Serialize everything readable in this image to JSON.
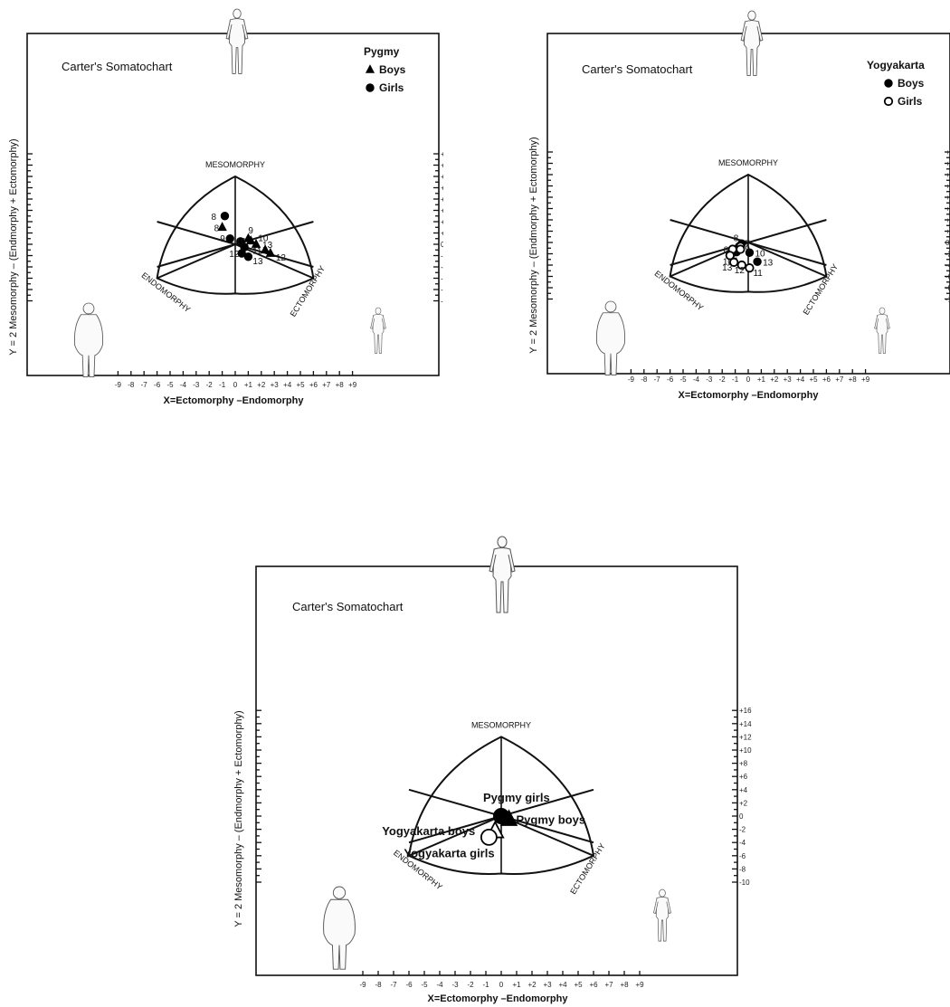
{
  "chart_data": [
    {
      "type": "scatter",
      "title": "Carter's Somatochart",
      "xlabel": "X=Ectomorphy –Endomorphy",
      "ylabel": "Y = 2 Mesomorphy – (Endmorphy + Ectomorphy)",
      "xlim": [
        -9,
        9
      ],
      "ylim": [
        -10,
        16
      ],
      "regions": [
        "MESOMORPHY",
        "ENDOMORPHY",
        "ECTOMORPHY"
      ],
      "legend": {
        "title": "Pygmy",
        "entries": [
          {
            "label": "Boys",
            "marker": "triangle"
          },
          {
            "label": "Girls",
            "marker": "filled-circle"
          }
        ]
      },
      "series": [
        {
          "name": "Boys",
          "marker": "triangle",
          "points": [
            {
              "label": "8",
              "x": -1.0,
              "y": 3.0
            },
            {
              "label": "9",
              "x": 1.0,
              "y": 1.0
            },
            {
              "label": "10",
              "x": 1.2,
              "y": 0.6
            },
            {
              "label": "13",
              "x": 1.6,
              "y": 0.0
            },
            {
              "label": "11",
              "x": 2.3,
              "y": -1.0
            },
            {
              "label": "12",
              "x": 2.7,
              "y": -1.6
            }
          ]
        },
        {
          "name": "Girls",
          "marker": "filled-circle",
          "points": [
            {
              "label": "8",
              "x": -0.8,
              "y": 5.0
            },
            {
              "label": "9",
              "x": -0.4,
              "y": 1.0
            },
            {
              "label": "10",
              "x": 0.4,
              "y": 0.5
            },
            {
              "label": "",
              "x": 0.7,
              "y": -0.5
            },
            {
              "label": "12",
              "x": 0.5,
              "y": -1.6
            },
            {
              "label": "13",
              "x": 1.0,
              "y": -2.2
            }
          ]
        }
      ]
    },
    {
      "type": "scatter",
      "title": "Carter's Somatochart",
      "xlabel": "X=Ectomorphy –Endomorphy",
      "ylabel": "Y = 2 Mesomorphy – (Endmorphy + Ectomorphy)",
      "xlim": [
        -9,
        9
      ],
      "ylim": [
        -10,
        16
      ],
      "regions": [
        "MESOMORPHY",
        "ENDOMORPHY",
        "ECTOMORPHY"
      ],
      "legend": {
        "title": "Yogyakarta",
        "entries": [
          {
            "label": "Boys",
            "marker": "filled-circle"
          },
          {
            "label": "Girls",
            "marker": "open-circle"
          }
        ]
      },
      "series": [
        {
          "name": "Boys",
          "marker": "filled-circle",
          "points": [
            {
              "label": "8",
              "x": -0.5,
              "y": -0.2
            },
            {
              "label": "",
              "x": -0.7,
              "y": -0.7
            },
            {
              "label": "",
              "x": -0.9,
              "y": -1.2
            },
            {
              "label": "12",
              "x": -0.9,
              "y": -1.7
            },
            {
              "label": "10",
              "x": 0.1,
              "y": -1.8
            },
            {
              "label": "13",
              "x": 0.7,
              "y": -3.4
            }
          ]
        },
        {
          "name": "Girls",
          "marker": "open-circle",
          "points": [
            {
              "label": "7",
              "x": -0.6,
              "y": -0.7
            },
            {
              "label": "9",
              "x": -0.6,
              "y": -1.2
            },
            {
              "label": "8",
              "x": -1.2,
              "y": -1.2
            },
            {
              "label": "10",
              "x": -1.4,
              "y": -2.3
            },
            {
              "label": "13",
              "x": -1.1,
              "y": -3.5
            },
            {
              "label": "12",
              "x": -0.5,
              "y": -4.0
            },
            {
              "label": "11",
              "x": 0.1,
              "y": -4.5
            }
          ]
        }
      ]
    },
    {
      "type": "scatter",
      "title": "Carter's Somatochart",
      "xlabel": "X=Ectomorphy –Endomorphy",
      "ylabel": "Y = 2 Mesomorphy – (Endmorphy + Ectomorphy)",
      "xlim": [
        -9,
        9
      ],
      "ylim": [
        -10,
        16
      ],
      "regions": [
        "MESOMORPHY",
        "ENDOMORPHY",
        "ECTOMORPHY"
      ],
      "series": [
        {
          "name": "Pygmy girls",
          "marker": "filled-circle",
          "points": [
            {
              "label": "Pygmy girls",
              "x": 0.0,
              "y": 0.0
            }
          ]
        },
        {
          "name": "Pygmy boys",
          "marker": "triangle",
          "points": [
            {
              "label": "Pygmy boys",
              "x": 0.5,
              "y": -0.5
            }
          ]
        },
        {
          "name": "Yogyakarta boys",
          "marker": "open-triangle",
          "points": [
            {
              "label": "Yogyakarta boys",
              "x": -0.4,
              "y": -2.3
            }
          ]
        },
        {
          "name": "Yogyakarta girls",
          "marker": "open-circle",
          "points": [
            {
              "label": "Yogyakarta  girls",
              "x": -0.8,
              "y": -3.2
            }
          ]
        }
      ]
    }
  ]
}
